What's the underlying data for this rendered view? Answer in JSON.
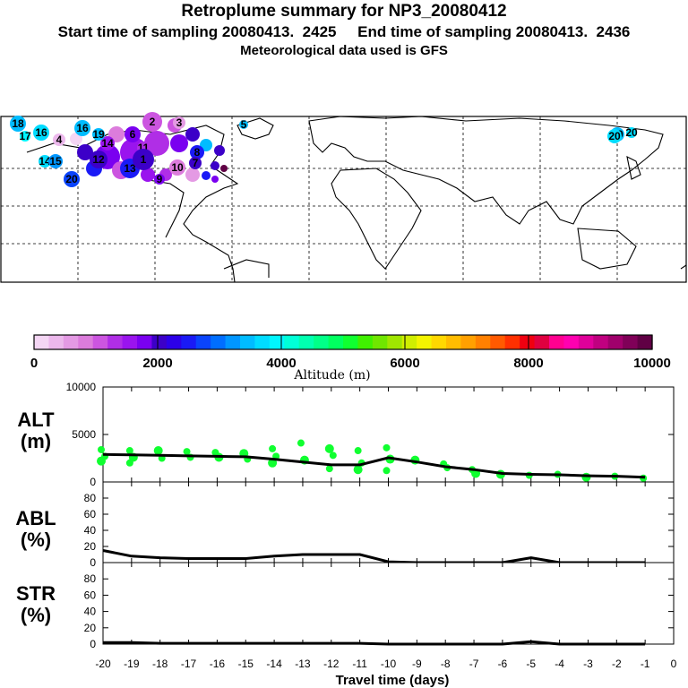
{
  "header": {
    "title": "Retroplume summary for NP3_20080412",
    "sampling": "Start time of sampling 20080413.  2425     End time of sampling 20080413.  2436",
    "met": "Meteorological data used is GFS"
  },
  "colorbar": {
    "tick_labels": [
      "0",
      "2000",
      "4000",
      "6000",
      "8000",
      "10000"
    ],
    "label": "Altitude (m)",
    "colors": [
      "#f4d6f4",
      "#ecb8ec",
      "#e49ae4",
      "#dc7cdc",
      "#cc55e0",
      "#b02ee6",
      "#9a14ee",
      "#7a00f0",
      "#3c00c8",
      "#2c00e8",
      "#1a1af6",
      "#0a44fc",
      "#006eff",
      "#0096ff",
      "#00bcff",
      "#00dcff",
      "#00f6ff",
      "#00ffd8",
      "#00ffb0",
      "#00ff88",
      "#00ff60",
      "#10ff30",
      "#40f000",
      "#70e600",
      "#a0e600",
      "#d0ee00",
      "#f4f400",
      "#ffd800",
      "#ffbc00",
      "#ffa000",
      "#ff8000",
      "#ff5a00",
      "#ff3000",
      "#f00010",
      "#e00040",
      "#ff0090",
      "#ff00b0",
      "#e0009a",
      "#c00080",
      "#a0006c",
      "#800058",
      "#600044"
    ]
  },
  "map": {
    "markers": [
      {
        "label": "18",
        "color": "#00bcff"
      },
      {
        "label": "17",
        "color": "#00f6ff"
      },
      {
        "label": "16",
        "color": "#00dcff"
      },
      {
        "label": "16",
        "color": "#00bcff"
      },
      {
        "label": "14",
        "color": "#00dcff"
      },
      {
        "label": "15",
        "color": "#0096ff"
      },
      {
        "label": "20",
        "color": "#0a44fc"
      },
      {
        "label": "19",
        "color": "#00bcff"
      },
      {
        "label": "20",
        "color": "#00dcff"
      },
      {
        "label": "4",
        "color": "#ecb8ec"
      },
      {
        "label": "2",
        "color": "#cc55e0"
      },
      {
        "label": "3",
        "color": "#e49ae4"
      },
      {
        "label": "12",
        "color": "#3c00c8"
      },
      {
        "label": "13",
        "color": "#1a1af6"
      },
      {
        "label": "14",
        "color": "#9a14ee"
      },
      {
        "label": "11",
        "color": "#b02ee6"
      },
      {
        "label": "10",
        "color": "#dc7cdc"
      },
      {
        "label": "9",
        "color": "#7a00f0"
      },
      {
        "label": "6",
        "color": "#7a00f0"
      },
      {
        "label": "1",
        "color": "#3c00c8"
      },
      {
        "label": "5",
        "color": "#00bcff"
      },
      {
        "label": "8",
        "color": "#1a1af6"
      },
      {
        "label": "7",
        "color": "#3c00c8"
      },
      {
        "label": "20",
        "color": "#00dcff"
      },
      {
        "label": "19",
        "color": "#00bcff"
      }
    ]
  },
  "panels": {
    "alt": {
      "label_top": "ALT",
      "label_bottom": "(m)",
      "ticks": [
        "10000",
        "5000",
        "0"
      ]
    },
    "abl": {
      "label_top": "ABL",
      "label_bottom": "(%)",
      "ticks": [
        "80",
        "60",
        "40",
        "20",
        "0"
      ]
    },
    "str": {
      "label_top": "STR",
      "label_bottom": "(%)",
      "ticks": [
        "80",
        "60",
        "40",
        "20",
        "0"
      ]
    }
  },
  "chart_data": {
    "type": "line",
    "title": "Retroplume summary for NP3_20080412",
    "xlabel": "Travel time (days)",
    "xlim": [
      -20,
      0
    ],
    "x_tick_labels": [
      "-20",
      "-19",
      "-18",
      "-17",
      "-16",
      "-15",
      "-14",
      "-13",
      "-12",
      "-11",
      "-10",
      "-9",
      "-8",
      "-7",
      "-6",
      "-5",
      "-4",
      "-3",
      "-2",
      "-1",
      "0"
    ],
    "x": [
      -20,
      -19,
      -18,
      -17,
      -16,
      -15,
      -14,
      -13,
      -12,
      -11,
      -10,
      -9,
      -8,
      -7,
      -6,
      -5,
      -4,
      -3,
      -2,
      -1
    ],
    "series": [
      {
        "name": "ALT (m)",
        "ylim": [
          0,
          10000
        ],
        "values": [
          2900,
          2850,
          2800,
          2750,
          2700,
          2650,
          2400,
          2100,
          1800,
          1800,
          2550,
          2100,
          1600,
          1300,
          900,
          800,
          750,
          650,
          600,
          500
        ]
      },
      {
        "name": "ABL (%)",
        "ylim": [
          0,
          100
        ],
        "values": [
          15,
          8,
          6,
          5,
          5,
          5,
          8,
          10,
          10,
          10,
          1,
          0,
          0,
          0,
          0,
          6,
          0,
          0,
          0,
          0
        ]
      },
      {
        "name": "STR (%)",
        "ylim": [
          0,
          100
        ],
        "values": [
          2,
          2,
          1,
          1,
          1,
          1,
          1,
          1,
          1,
          1,
          0,
          0,
          0,
          0,
          0,
          3,
          0,
          0,
          0,
          0
        ]
      }
    ],
    "alt_scatter": [
      {
        "x": -20,
        "y": [
          3400,
          2700,
          2200
        ]
      },
      {
        "x": -19,
        "y": [
          3300,
          2600,
          2000
        ]
      },
      {
        "x": -18,
        "y": [
          3300,
          2500
        ]
      },
      {
        "x": -17,
        "y": [
          3200,
          2600
        ]
      },
      {
        "x": -16,
        "y": [
          3100,
          2600
        ]
      },
      {
        "x": -15,
        "y": [
          3000,
          2400
        ]
      },
      {
        "x": -14,
        "y": [
          3500,
          2700,
          2000
        ]
      },
      {
        "x": -13,
        "y": [
          4100,
          2300
        ]
      },
      {
        "x": -12,
        "y": [
          3500,
          2800,
          1400
        ]
      },
      {
        "x": -11,
        "y": [
          3300,
          2000,
          1300
        ]
      },
      {
        "x": -10,
        "y": [
          3600,
          2400,
          1200
        ]
      },
      {
        "x": -9,
        "y": [
          2300
        ]
      },
      {
        "x": -8,
        "y": [
          1900,
          1500
        ]
      },
      {
        "x": -7,
        "y": [
          1300,
          900
        ]
      },
      {
        "x": -6,
        "y": [
          800
        ]
      },
      {
        "x": -5,
        "y": [
          700
        ]
      },
      {
        "x": -4,
        "y": [
          800
        ]
      },
      {
        "x": -3,
        "y": [
          500
        ]
      },
      {
        "x": -2,
        "y": [
          600
        ]
      },
      {
        "x": -1,
        "y": [
          400
        ]
      }
    ]
  }
}
